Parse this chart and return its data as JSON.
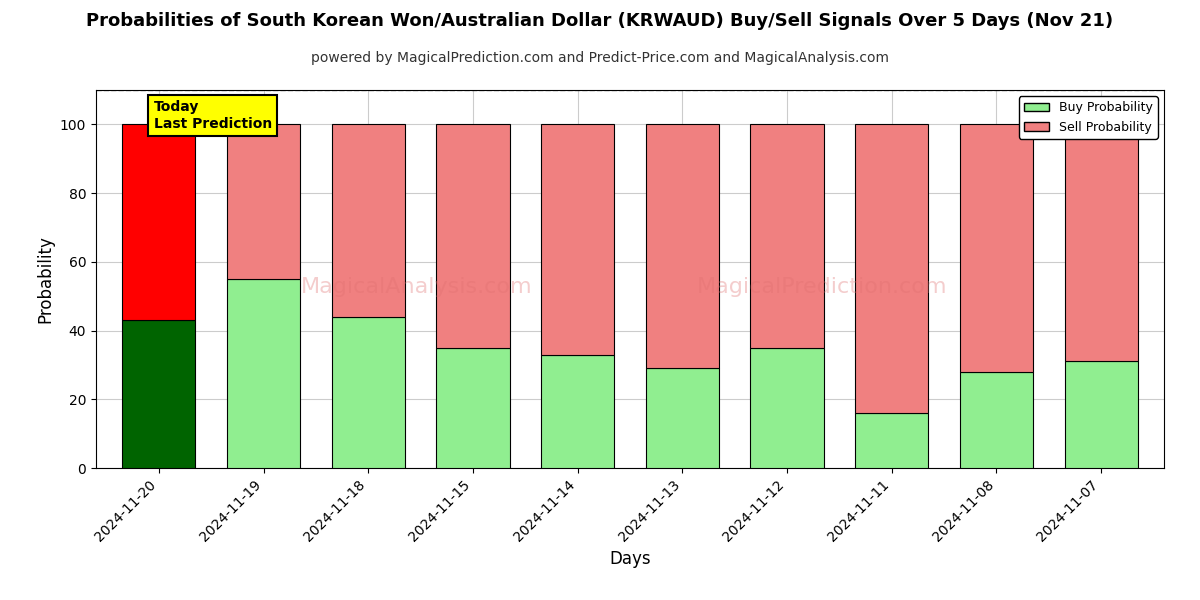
{
  "title": "Probabilities of South Korean Won/Australian Dollar (KRWAUD) Buy/Sell Signals Over 5 Days (Nov 21)",
  "subtitle": "powered by MagicalPrediction.com and Predict-Price.com and MagicalAnalysis.com",
  "xlabel": "Days",
  "ylabel": "Probability",
  "categories": [
    "2024-11-20",
    "2024-11-19",
    "2024-11-18",
    "2024-11-15",
    "2024-11-14",
    "2024-11-13",
    "2024-11-12",
    "2024-11-11",
    "2024-11-08",
    "2024-11-07"
  ],
  "buy_values": [
    43,
    55,
    44,
    35,
    33,
    29,
    35,
    16,
    28,
    31
  ],
  "sell_values": [
    57,
    45,
    56,
    65,
    67,
    71,
    65,
    84,
    72,
    69
  ],
  "today_bar_buy_color": "#006400",
  "today_bar_sell_color": "#ff0000",
  "other_bar_buy_color": "#90ee90",
  "other_bar_sell_color": "#f08080",
  "today_annotation_bg": "#ffff00",
  "today_annotation_text": "Today\nLast Prediction",
  "legend_buy_label": "Buy Probability",
  "legend_sell_label": "Sell Probability",
  "ylim": [
    0,
    110
  ],
  "yticks": [
    0,
    20,
    40,
    60,
    80,
    100
  ],
  "dashed_line_y": 110,
  "background_color": "#ffffff",
  "grid_color": "#cccccc",
  "title_fontsize": 13,
  "subtitle_fontsize": 10,
  "axis_label_fontsize": 12,
  "tick_fontsize": 10,
  "bar_edge_color": "#000000",
  "bar_width": 0.7,
  "watermark1": "MagicalAnalysis.com",
  "watermark2": "MagicalPrediction.com"
}
